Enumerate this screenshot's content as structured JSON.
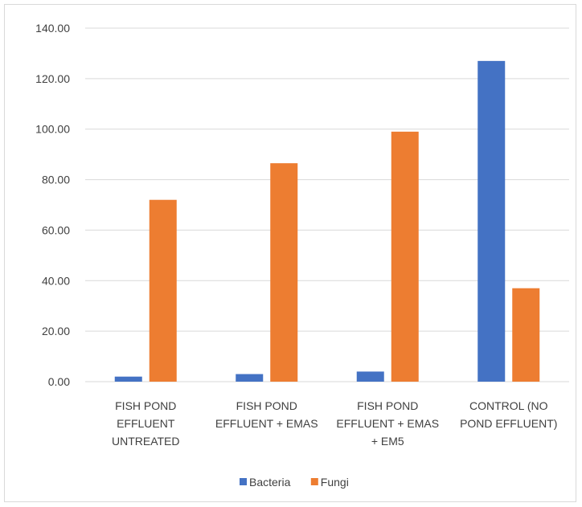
{
  "chart_data": {
    "type": "bar",
    "categories": [
      [
        "FISH POND",
        "EFFLUENT",
        "UNTREATED"
      ],
      [
        "FISH POND",
        "EFFLUENT + EMAS"
      ],
      [
        "FISH POND",
        "EFFLUENT + EMAS",
        "+ EM5"
      ],
      [
        "CONTROL (NO",
        "POND EFFLUENT)"
      ]
    ],
    "series": [
      {
        "name": "Bacteria",
        "color": "#4472c4",
        "values": [
          2.0,
          3.0,
          4.0,
          127.0
        ]
      },
      {
        "name": "Fungi",
        "color": "#ed7d31",
        "values": [
          72.0,
          86.5,
          99.0,
          37.0
        ]
      }
    ],
    "yticks": [
      "0.00",
      "20.00",
      "40.00",
      "60.00",
      "80.00",
      "100.00",
      "120.00",
      "140.00"
    ],
    "ylim": [
      0,
      140
    ],
    "grid": true,
    "legend_position": "bottom",
    "gridline_color": "#d9d9d9"
  }
}
